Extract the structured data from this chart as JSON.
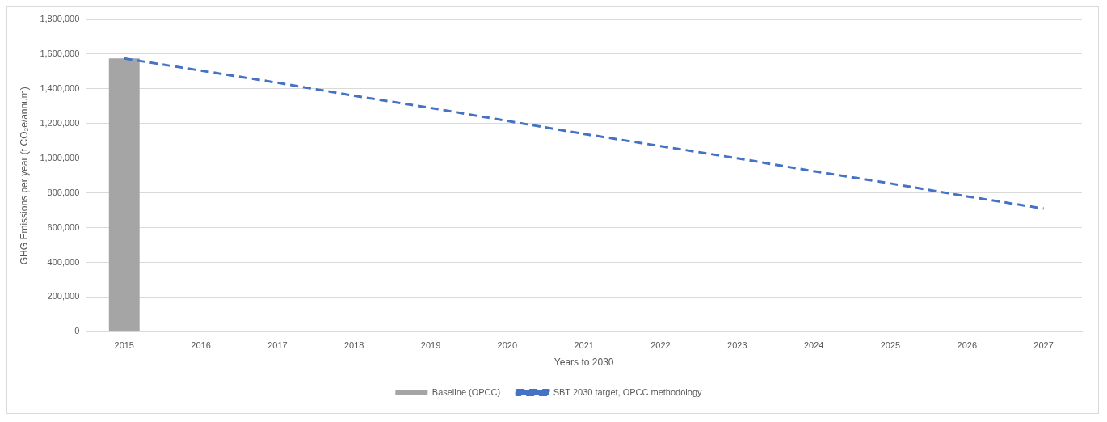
{
  "chart_data": {
    "type": "bar",
    "xlabel": "Years to 2030",
    "ylabel": "GHG Emissions per year (t CO₂e/annum)",
    "categories": [
      "2015",
      "2016",
      "2017",
      "2018",
      "2019",
      "2020",
      "2021",
      "2022",
      "2023",
      "2024",
      "2025",
      "2026",
      "2027"
    ],
    "series": [
      {
        "name": "Baseline (OPCC)",
        "color": "#a5a5a5",
        "values": [
          1575000,
          null,
          null,
          null,
          null,
          null,
          null,
          null,
          null,
          null,
          null,
          null,
          null
        ]
      },
      {
        "name": "SBT 2030 target, OPCC methodology",
        "type": "line",
        "color": "#4472c4",
        "line_style": "dashed",
        "marker": "none",
        "values": [
          1575000,
          1505000,
          1435000,
          1360000,
          1290000,
          1215000,
          1140000,
          1070000,
          1000000,
          925000,
          855000,
          780000,
          710000
        ]
      }
    ],
    "ylim": [
      0,
      1800000
    ],
    "yticks": [
      {
        "value": 0,
        "label": "0"
      },
      {
        "value": 200000,
        "label": "200,000"
      },
      {
        "value": 400000,
        "label": "400,000"
      },
      {
        "value": 600000,
        "label": "600,000"
      },
      {
        "value": 800000,
        "label": "800,000"
      },
      {
        "value": 1000000,
        "label": "1,000,000"
      },
      {
        "value": 1200000,
        "label": "1,200,000"
      },
      {
        "value": 1400000,
        "label": "1,400,000"
      },
      {
        "value": 1600000,
        "label": "1,600,000"
      },
      {
        "value": 1800000,
        "label": "1,800,000"
      }
    ],
    "grid": "y",
    "legend": "bottom"
  }
}
